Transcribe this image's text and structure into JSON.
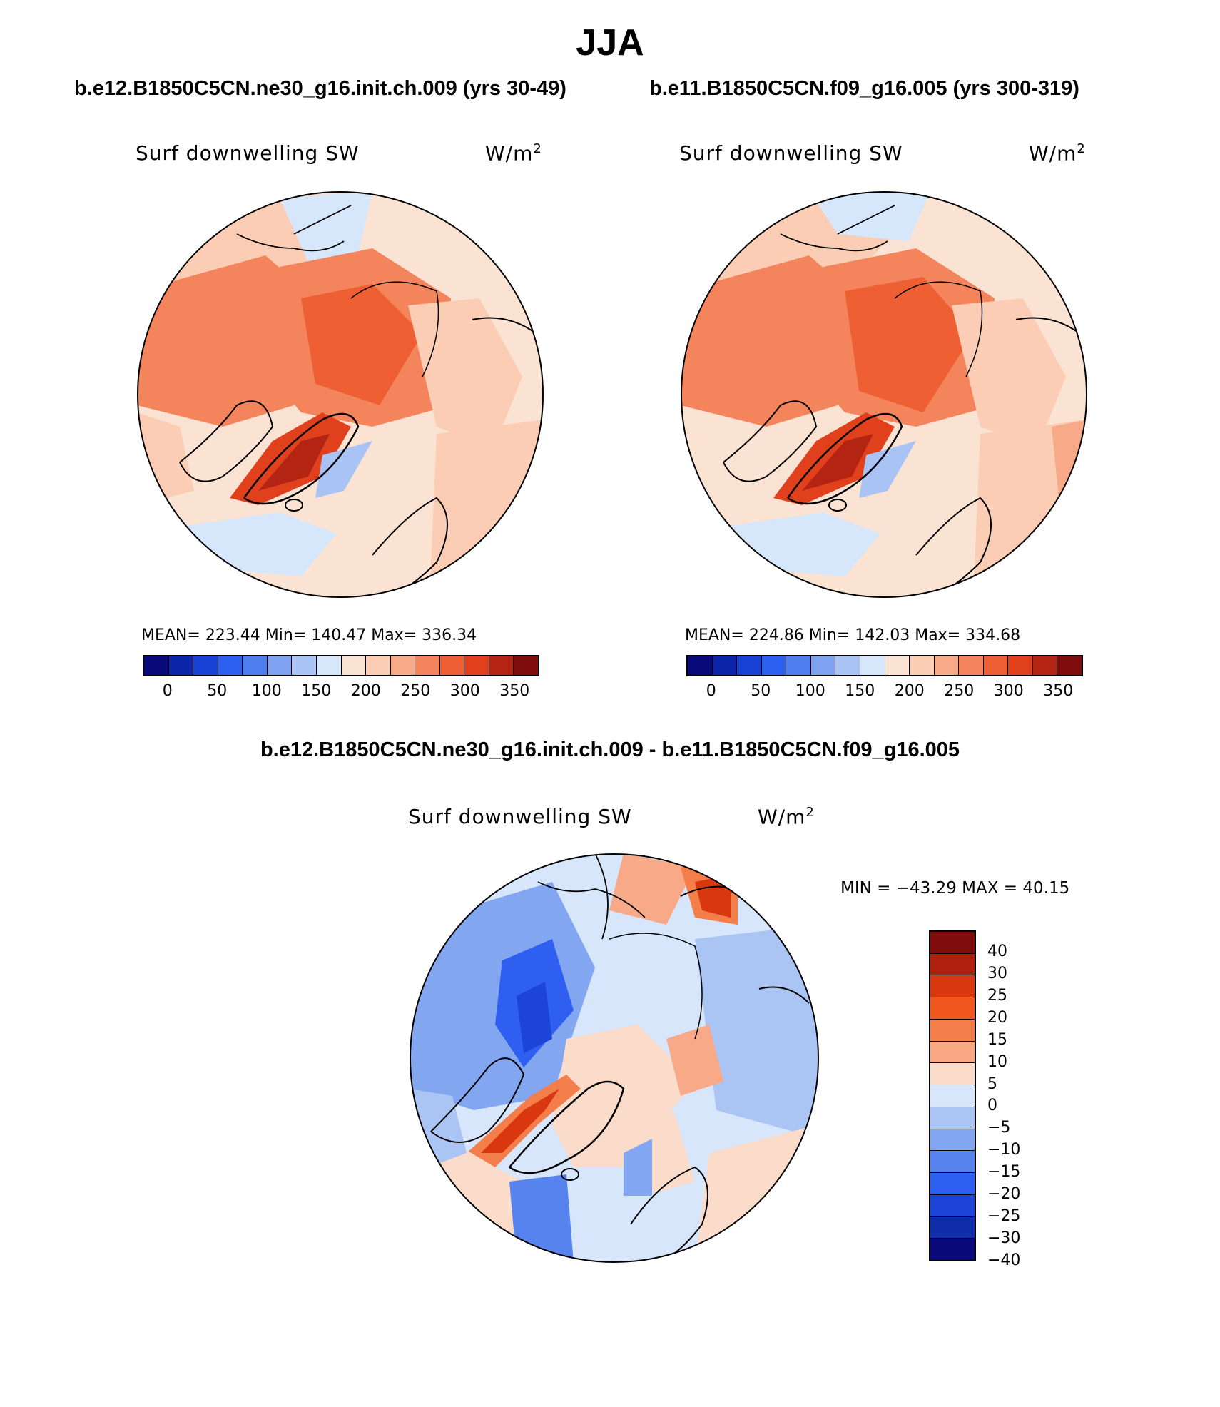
{
  "title": "JJA",
  "diff_title": "b.e12.B1850C5CN.ne30_g16.init.ch.009 - b.e11.B1850C5CN.f09_g16.005",
  "panels": [
    {
      "case_title": "b.e12.B1850C5CN.ne30_g16.init.ch.009 (yrs 30-49)",
      "variable": "Surf downwelling SW",
      "units": "W/m",
      "units_sup": "2",
      "stats": "MEAN= 223.44   Min= 140.47   Max= 336.34"
    },
    {
      "case_title": "b.e11.B1850C5CN.f09_g16.005 (yrs 300-319)",
      "variable": "Surf downwelling SW",
      "units": "W/m",
      "units_sup": "2",
      "stats": "MEAN= 224.86   Min= 142.03   Max= 334.68"
    }
  ],
  "diff_panel": {
    "variable": "Surf downwelling SW",
    "units": "W/m",
    "units_sup": "2",
    "minmax": "MIN = −43.29 MAX =  40.15"
  },
  "colorbar_abs": {
    "colors": [
      "#0a0a7a",
      "#0b24a8",
      "#1641d4",
      "#2d5ff0",
      "#4f7fee",
      "#7ea2f0",
      "#a9c3f5",
      "#d6e6fb",
      "#fbe3d3",
      "#fbcdb4",
      "#f8aa88",
      "#f4845c",
      "#ef5f34",
      "#e0401c",
      "#b42412",
      "#7e0c0c"
    ],
    "ticks": [
      "0",
      "50",
      "100",
      "150",
      "200",
      "250",
      "300",
      "350"
    ]
  },
  "colorbar_diff": {
    "colors": [
      "#7e0c0c",
      "#b0200f",
      "#d9380f",
      "#f1561d",
      "#f47e4a",
      "#f8a882",
      "#fbdccb",
      "#d7e6fa",
      "#aac4f4",
      "#82a6f0",
      "#5783ee",
      "#2e5ff0",
      "#1c45d8",
      "#0f2caa",
      "#0a0a7a"
    ],
    "ticks": [
      "40",
      "30",
      "25",
      "20",
      "15",
      "10",
      "5",
      "0",
      "−5",
      "−10",
      "−15",
      "−20",
      "−25",
      "−30",
      "−40"
    ]
  }
}
